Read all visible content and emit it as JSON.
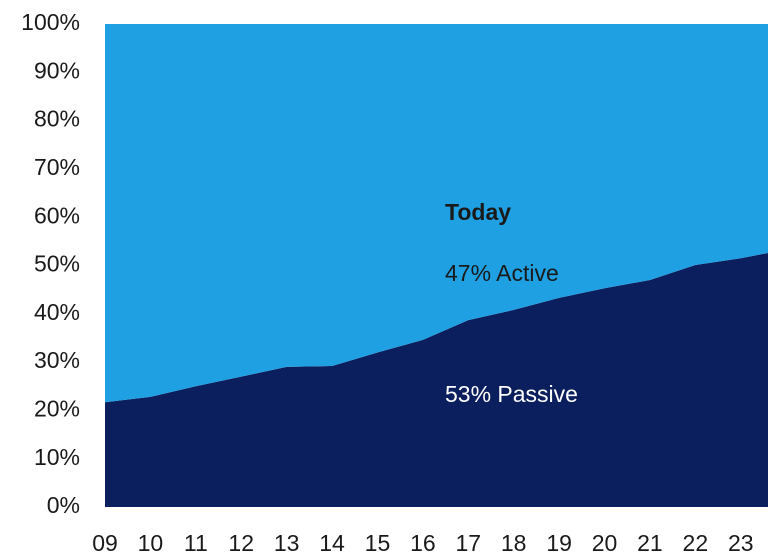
{
  "chart_data": {
    "type": "stacked_area",
    "x": [
      9,
      10,
      11,
      12,
      13,
      14,
      15,
      16,
      17,
      18,
      19,
      20,
      21,
      22,
      23,
      23.6
    ],
    "xlim": [
      9,
      23.6
    ],
    "xticks": [
      {
        "value": 9,
        "label": "09"
      },
      10,
      11,
      12,
      13,
      14,
      15,
      16,
      17,
      18,
      19,
      20,
      21,
      22,
      23
    ],
    "ylim": [
      0,
      100
    ],
    "yticks": [
      {
        "value": 0,
        "label": "0%"
      },
      {
        "value": 10,
        "label": "10%"
      },
      {
        "value": 20,
        "label": "20%"
      },
      {
        "value": 30,
        "label": "30%"
      },
      {
        "value": 40,
        "label": "40%"
      },
      {
        "value": 50,
        "label": "50%"
      },
      {
        "value": 60,
        "label": "60%"
      },
      {
        "value": 70,
        "label": "70%"
      },
      {
        "value": 80,
        "label": "80%"
      },
      {
        "value": 90,
        "label": "90%"
      },
      {
        "value": 100,
        "label": "100%"
      }
    ],
    "series": [
      {
        "color": "#0b1f5e",
        "values": [
          21.7,
          22.8,
          25,
          27,
          29,
          29.2,
          32,
          34.6,
          38.7,
          40.8,
          43.3,
          45.3,
          47,
          50.1,
          51.5,
          52.6
        ]
      },
      {
        "color": "#1fa0e3",
        "values": [
          78.3,
          77.2,
          75,
          73,
          71,
          70.8,
          68,
          65.4,
          61.3,
          59.2,
          56.7,
          54.7,
          53,
          49.9,
          48.5,
          47.4
        ]
      }
    ],
    "annotations": [
      "Today",
      "47% Active",
      "53% Passive"
    ]
  }
}
